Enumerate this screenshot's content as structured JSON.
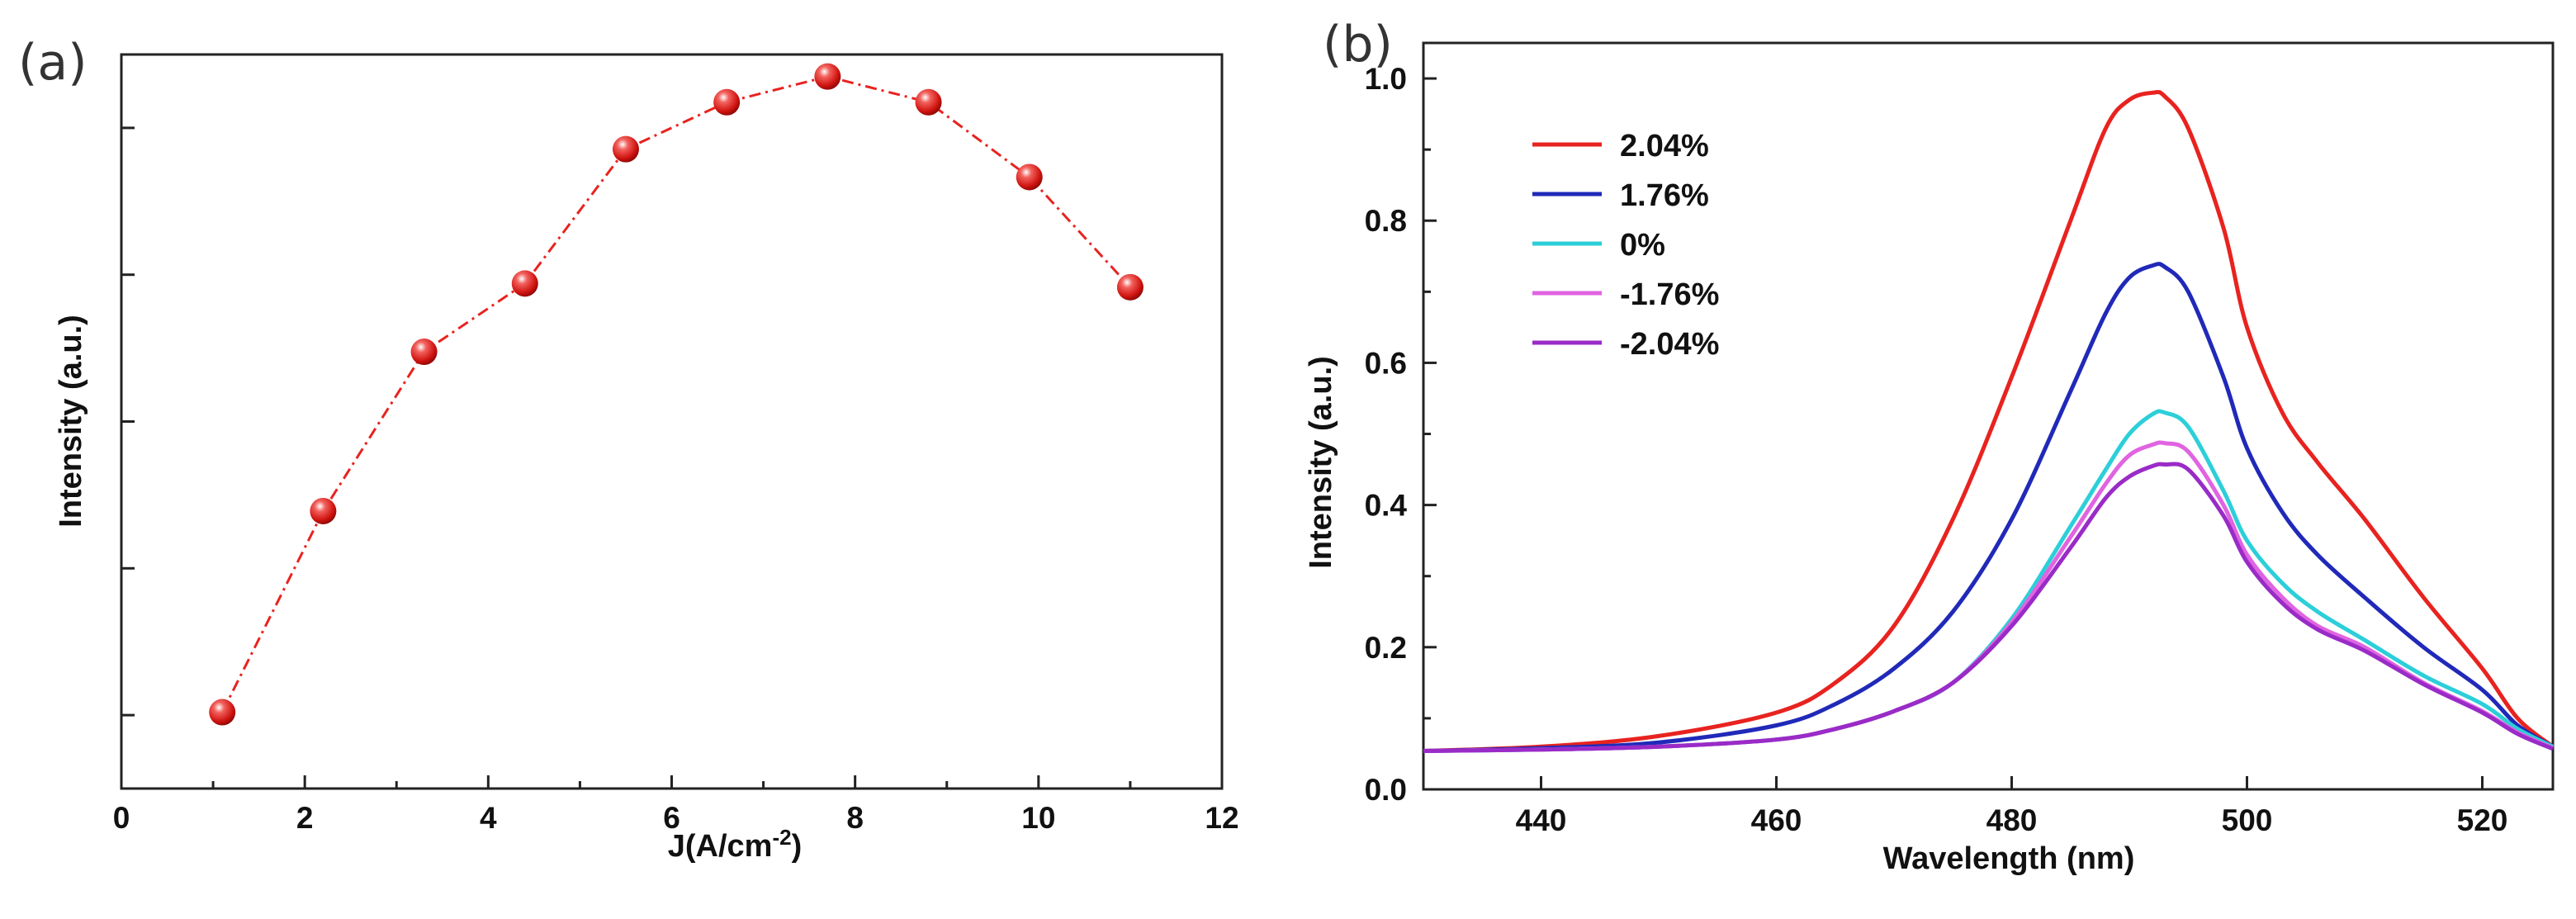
{
  "chart_data": [
    {
      "panel_label": "(a)",
      "type": "line",
      "style": "dash-dot with markers",
      "xlabel": "J(A/cm",
      "xlabel_sup": "-2",
      "xlabel_end": ")",
      "ylabel": "Intensity (a.u.)",
      "xlim": [
        0,
        12
      ],
      "ylim": [
        0,
        1.0
      ],
      "xticks": [
        0,
        2,
        4,
        6,
        8,
        10,
        12
      ],
      "yticks_unlabeled": [
        0.1,
        0.3,
        0.5,
        0.7,
        0.9
      ],
      "x": [
        1.1,
        2.2,
        3.3,
        4.4,
        5.5,
        6.6,
        7.7,
        8.8,
        9.9,
        11.0
      ],
      "values": [
        0.104,
        0.378,
        0.595,
        0.688,
        0.871,
        0.935,
        0.97,
        0.935,
        0.833,
        0.683
      ],
      "color": "#e8231f"
    },
    {
      "panel_label": "(b)",
      "type": "line",
      "xlabel": "Wavelength (nm)",
      "ylabel": "Intensity (a.u.)",
      "xlim": [
        430,
        526
      ],
      "ylim": [
        0.0,
        1.05
      ],
      "xticks": [
        440,
        460,
        480,
        500,
        520
      ],
      "yticks": [
        0.0,
        0.2,
        0.4,
        0.6,
        0.8,
        1.0
      ],
      "ytick_labels": [
        "0.0",
        "0.2",
        "0.4",
        "0.6",
        "0.8",
        "1.0"
      ],
      "legend_position": "top-left",
      "x": [
        430,
        440,
        450,
        460,
        465,
        470,
        475,
        480,
        485,
        488,
        490,
        492,
        493,
        495,
        498,
        500,
        503,
        506,
        510,
        515,
        520,
        523,
        526
      ],
      "series": [
        {
          "name": "2.04%",
          "color": "#e8231f",
          "values": [
            0.054,
            0.06,
            0.075,
            0.108,
            0.15,
            0.23,
            0.38,
            0.58,
            0.8,
            0.93,
            0.97,
            0.98,
            0.975,
            0.93,
            0.79,
            0.65,
            0.53,
            0.46,
            0.38,
            0.27,
            0.17,
            0.1,
            0.06
          ]
        },
        {
          "name": "1.76%",
          "color": "#2029b8",
          "values": [
            0.054,
            0.058,
            0.066,
            0.09,
            0.12,
            0.17,
            0.25,
            0.38,
            0.56,
            0.67,
            0.72,
            0.737,
            0.735,
            0.7,
            0.58,
            0.48,
            0.39,
            0.33,
            0.27,
            0.2,
            0.14,
            0.09,
            0.06
          ]
        },
        {
          "name": "0%",
          "color": "#2ccfd9",
          "values": [
            0.054,
            0.056,
            0.06,
            0.07,
            0.085,
            0.11,
            0.15,
            0.24,
            0.37,
            0.45,
            0.5,
            0.528,
            0.53,
            0.51,
            0.42,
            0.35,
            0.29,
            0.25,
            0.21,
            0.16,
            0.12,
            0.085,
            0.06
          ]
        },
        {
          "name": "-1.76%",
          "color": "#e064e0",
          "values": [
            0.054,
            0.056,
            0.06,
            0.07,
            0.085,
            0.11,
            0.15,
            0.235,
            0.355,
            0.43,
            0.47,
            0.485,
            0.487,
            0.475,
            0.4,
            0.33,
            0.27,
            0.23,
            0.2,
            0.15,
            0.11,
            0.08,
            0.058
          ]
        },
        {
          "name": "-2.04%",
          "color": "#9a2bc7",
          "values": [
            0.054,
            0.056,
            0.06,
            0.07,
            0.085,
            0.11,
            0.15,
            0.23,
            0.34,
            0.41,
            0.44,
            0.455,
            0.457,
            0.45,
            0.385,
            0.32,
            0.262,
            0.225,
            0.195,
            0.148,
            0.108,
            0.078,
            0.057
          ]
        }
      ]
    }
  ]
}
